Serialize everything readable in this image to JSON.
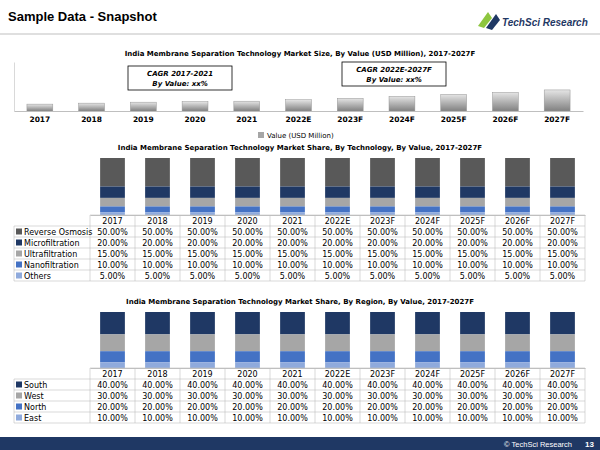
{
  "header": {
    "title": "Sample Data - Snapshot",
    "logo": "TechSci Research"
  },
  "footer": {
    "text": "© TechSci Research",
    "page_number": 13
  },
  "chart_data": [
    {
      "type": "bar",
      "title": "India Membrane Separation Technology Market Size, By Value (USD Million), 2017-2027F",
      "categories": [
        "2017",
        "2018",
        "2019",
        "2020",
        "2021",
        "2022E",
        "2023F",
        "2024F",
        "2025F",
        "2026F",
        "2027F"
      ],
      "series": [
        {
          "name": "Value (USD Million)",
          "color": "#a6a6a6",
          "values": [
            140,
            160,
            180,
            190,
            200,
            230,
            260,
            300,
            340,
            380,
            430
          ]
        }
      ],
      "ylim": [
        0,
        1000
      ],
      "tick_labels": "x",
      "legend": "bottom",
      "annotations": [
        {
          "title": "CAGR 2017-2021",
          "text": "By Value: xx%"
        },
        {
          "title": "CAGR 2022E-2027F",
          "text": "By Value: xx%"
        }
      ]
    },
    {
      "type": "bar",
      "title": "India Membrane Separation Technology Market Share, By Technology, By Value, 2017-2027F",
      "stacked": true,
      "categories": [
        "2017",
        "2018",
        "2019",
        "2020",
        "2021",
        "2022E",
        "2023F",
        "2024F",
        "2025F",
        "2026F",
        "2027F"
      ],
      "series": [
        {
          "name": "Reverse Osmosis",
          "color": "#595959",
          "values": [
            50,
            50,
            50,
            50,
            50,
            50,
            50,
            50,
            50,
            50,
            50
          ],
          "value_labels": [
            "50.00%",
            "50.00%",
            "50.00%",
            "50.00%",
            "50.00%",
            "50.00%",
            "50.00%",
            "50.00%",
            "50.00%",
            "50.00%",
            "50.00%"
          ]
        },
        {
          "name": "Microfiltration",
          "color": "#1f3864",
          "values": [
            20,
            20,
            20,
            20,
            20,
            20,
            20,
            20,
            20,
            20,
            20
          ],
          "value_labels": [
            "20.00%",
            "20.00%",
            "20.00%",
            "20.00%",
            "20.00%",
            "20.00%",
            "20.00%",
            "20.00%",
            "20.00%",
            "20.00%",
            "20.00%"
          ]
        },
        {
          "name": "Ultrafiltration",
          "color": "#a6a6a6",
          "values": [
            15,
            15,
            15,
            15,
            15,
            15,
            15,
            15,
            15,
            15,
            15
          ],
          "value_labels": [
            "15.00%",
            "15.00%",
            "15.00%",
            "15.00%",
            "15.00%",
            "15.00%",
            "15.00%",
            "15.00%",
            "15.00%",
            "15.00%",
            "15.00%"
          ]
        },
        {
          "name": "Nanofiltration",
          "color": "#4472c4",
          "values": [
            10,
            10,
            10,
            10,
            10,
            10,
            10,
            10,
            10,
            10,
            10
          ],
          "value_labels": [
            "10.00%",
            "10.00%",
            "10.00%",
            "10.00%",
            "10.00%",
            "10.00%",
            "10.00%",
            "10.00%",
            "10.00%",
            "10.00%",
            "10.00%"
          ]
        },
        {
          "name": "Others",
          "color": "#8faadc",
          "values": [
            5,
            5,
            5,
            5,
            5,
            5,
            5,
            5,
            5,
            5,
            5
          ],
          "value_labels": [
            "5.00%",
            "5.00%",
            "5.00%",
            "5.00%",
            "5.00%",
            "5.00%",
            "5.00%",
            "5.00%",
            "5.00%",
            "5.00%",
            "5.00%"
          ]
        }
      ],
      "ylim": [
        0,
        100
      ],
      "tick_labels": "x"
    },
    {
      "type": "bar",
      "title": "India Membrane Separation Technology Market Share, By Region, By Value, 2017-2027F",
      "stacked": true,
      "categories": [
        "2017",
        "2018",
        "2019",
        "2020",
        "2021",
        "2022E",
        "2023F",
        "2024F",
        "2025F",
        "2026F",
        "2027F"
      ],
      "series": [
        {
          "name": "South",
          "color": "#1f3864",
          "values": [
            40,
            40,
            40,
            40,
            40,
            40,
            40,
            40,
            40,
            40,
            40
          ],
          "value_labels": [
            "40.00%",
            "40.00%",
            "40.00%",
            "40.00%",
            "40.00%",
            "40.00%",
            "40.00%",
            "40.00%",
            "40.00%",
            "40.00%",
            "40.00%"
          ]
        },
        {
          "name": "West",
          "color": "#a6a6a6",
          "values": [
            30,
            30,
            30,
            30,
            30,
            30,
            30,
            30,
            30,
            30,
            30
          ],
          "value_labels": [
            "30.00%",
            "30.00%",
            "30.00%",
            "30.00%",
            "30.00%",
            "30.00%",
            "30.00%",
            "30.00%",
            "30.00%",
            "30.00%",
            "30.00%"
          ]
        },
        {
          "name": "North",
          "color": "#4472c4",
          "values": [
            20,
            20,
            20,
            20,
            20,
            20,
            20,
            20,
            20,
            20,
            20
          ],
          "value_labels": [
            "20.00%",
            "20.00%",
            "20.00%",
            "20.00%",
            "20.00%",
            "20.00%",
            "20.00%",
            "20.00%",
            "20.00%",
            "20.00%",
            "20.00%"
          ]
        },
        {
          "name": "East",
          "color": "#8faadc",
          "values": [
            10,
            10,
            10,
            10,
            10,
            10,
            10,
            10,
            10,
            10,
            10
          ],
          "value_labels": [
            "10.00%",
            "10.00%",
            "10.00%",
            "10.00%",
            "10.00%",
            "10.00%",
            "10.00%",
            "10.00%",
            "10.00%",
            "10.00%",
            "10.00%"
          ]
        }
      ],
      "ylim": [
        0,
        100
      ],
      "tick_labels": "x"
    }
  ]
}
